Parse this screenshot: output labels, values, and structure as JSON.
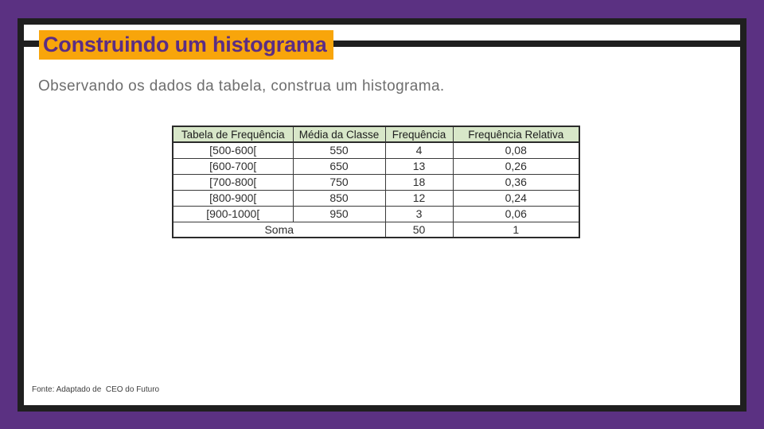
{
  "slide": {
    "title": "Construindo um histograma",
    "subtitle": "Observando os dados da tabela, construa um histograma.",
    "footer": "Fonte: Adaptado de  CEO do Futuro",
    "colors": {
      "background_purple": "#5b3182",
      "frame_black": "#1f1f1f",
      "title_highlight_orange": "#f8a50b",
      "title_text_purple": "#5b2d84",
      "subtitle_gray": "#6e6e6e",
      "table_header_green": "#d8e7c9",
      "table_border": "#2b2b2b"
    },
    "table": {
      "headers": [
        "Tabela de Frequência",
        "Média da Classe",
        "Frequência",
        "Frequência Relativa"
      ],
      "rows": [
        [
          "[500-600[",
          "550",
          "4",
          "0,08"
        ],
        [
          "[600-700[",
          "650",
          "13",
          "0,26"
        ],
        [
          "[700-800[",
          "750",
          "18",
          "0,36"
        ],
        [
          "[800-900[",
          "850",
          "12",
          "0,24"
        ],
        [
          "[900-1000[",
          "950",
          "3",
          "0,06"
        ]
      ],
      "summary": {
        "label": "Soma",
        "total_frequency": "50",
        "total_relative_frequency": "1"
      }
    }
  }
}
